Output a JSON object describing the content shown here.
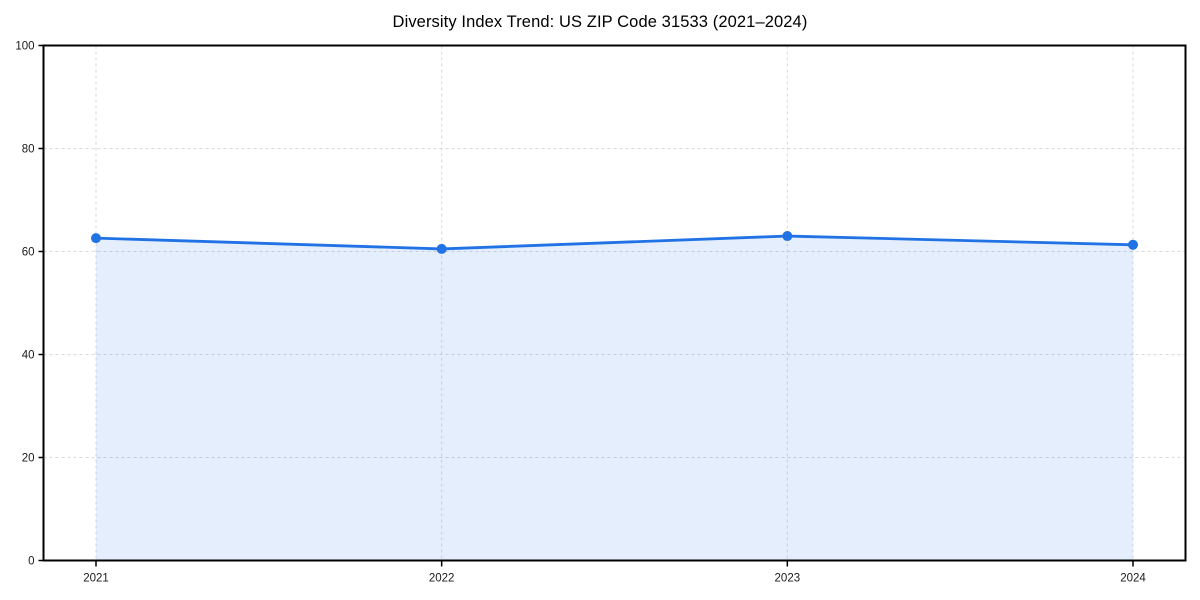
{
  "chart_data": {
    "type": "line",
    "title": "Diversity Index Trend: US ZIP Code 31533 (2021–2024)",
    "x": [
      2021,
      2022,
      2023,
      2024
    ],
    "xtick_labels": [
      "2021",
      "2022",
      "2023",
      "2024"
    ],
    "series": [
      {
        "name": "Diversity Index",
        "values": [
          62.6,
          60.5,
          63.0,
          61.3
        ]
      }
    ],
    "xlabel": "",
    "ylabel": "",
    "ylim": [
      0,
      100
    ],
    "yticks": [
      0,
      20,
      40,
      60,
      80,
      100
    ],
    "grid": true,
    "grid_style": "dashed",
    "legend_position": "none",
    "marker": "circle",
    "area_fill": true,
    "colors": {
      "line": "#2172e5",
      "marker": "#2172e5",
      "area_fill": "rgba(33, 114, 229, 0.12)",
      "grid": "#d9d9d9",
      "axis": "#000000",
      "text": "#1a1a1a",
      "background": "#ffffff"
    }
  }
}
